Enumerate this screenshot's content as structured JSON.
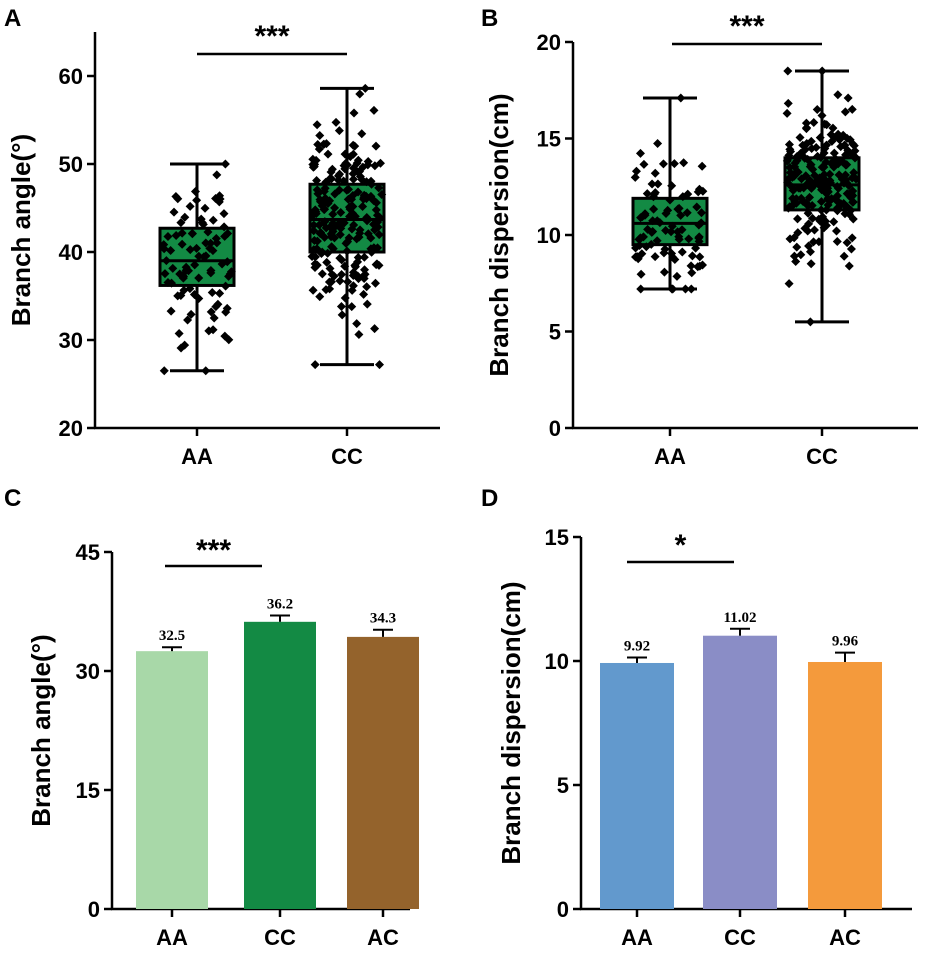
{
  "chart_data": [
    {
      "panel": "A",
      "type": "box",
      "categories": [
        "AA",
        "CC"
      ],
      "ylabel": "Branch angle(°)",
      "ylim": [
        20,
        65
      ],
      "yticks": [
        "20",
        "30",
        "40",
        "50",
        "60"
      ],
      "boxes": [
        {
          "min": 26.5,
          "q1": 36.2,
          "median": 39.0,
          "q3": 42.7,
          "max": 50.0
        },
        {
          "min": 27.2,
          "q1": 40.0,
          "median": 43.7,
          "q3": 47.7,
          "max": 58.6
        }
      ],
      "points_per_group": [
        90,
        220
      ],
      "significance": "***",
      "box_color": "#138a44"
    },
    {
      "panel": "B",
      "type": "box",
      "categories": [
        "AA",
        "CC"
      ],
      "ylabel": "Branch dispersion(cm)",
      "ylim": [
        0,
        20
      ],
      "yticks": [
        "0",
        "5",
        "10",
        "15",
        "20"
      ],
      "boxes": [
        {
          "min": 7.2,
          "q1": 9.5,
          "median": 10.6,
          "q3": 11.9,
          "max": 17.1
        },
        {
          "min": 5.5,
          "q1": 11.3,
          "median": 12.6,
          "q3": 14.0,
          "max": 18.5
        }
      ],
      "points_per_group": [
        90,
        220
      ],
      "significance": "***",
      "box_color": "#138a44"
    },
    {
      "panel": "C",
      "type": "bar",
      "categories": [
        "AA",
        "CC",
        "AC"
      ],
      "values": [
        32.5,
        36.2,
        34.3
      ],
      "errors": [
        0.5,
        0.8,
        0.9
      ],
      "value_labels": [
        "32.5",
        "36.2",
        "34.3"
      ],
      "colors": [
        "#a8d8a8",
        "#138a44",
        "#94632c"
      ],
      "ylabel": "Branch angle(°)",
      "ylim": [
        0,
        45
      ],
      "yticks": [
        "0",
        "15",
        "30",
        "45"
      ],
      "significance": "***"
    },
    {
      "panel": "D",
      "type": "bar",
      "categories": [
        "AA",
        "CC",
        "AC"
      ],
      "values": [
        9.92,
        11.02,
        9.96
      ],
      "errors": [
        0.22,
        0.28,
        0.38
      ],
      "value_labels": [
        "9.92",
        "11.02",
        "9.96"
      ],
      "colors": [
        "#6299cd",
        "#8a8dc6",
        "#f49a3c"
      ],
      "ylabel": "Branch dispersion(cm)",
      "ylim": [
        0,
        15
      ],
      "yticks": [
        "0",
        "5",
        "10",
        "15"
      ],
      "significance": "*"
    }
  ]
}
